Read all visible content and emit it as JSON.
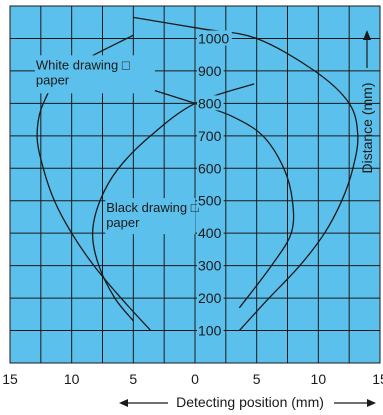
{
  "chart_data": {
    "type": "line",
    "title": "",
    "xlabel": "Detecting position (mm)",
    "ylabel": "Distance (mm)",
    "xlim": [
      -15,
      15
    ],
    "ylim": [
      0,
      1100
    ],
    "x_ticks": [
      -15,
      -10,
      -5,
      0,
      5,
      10,
      15
    ],
    "x_tick_labels": [
      "15",
      "10",
      "5",
      "0",
      "5",
      "10",
      "15"
    ],
    "y_ticks": [
      100,
      200,
      300,
      400,
      500,
      600,
      700,
      800,
      900,
      1000
    ],
    "y_tick_labels": [
      "100",
      "200",
      "300",
      "400",
      "500",
      "600",
      "700",
      "800",
      "900",
      "1000"
    ],
    "grid": true,
    "background_color": "#5cc0ec",
    "line_color": "#1a1a1a",
    "annotations": [
      {
        "text": "White drawing □\npaper",
        "near_series": "White drawing paper"
      },
      {
        "text": "Black drawing □\npaper",
        "near_series": "Black drawing paper"
      }
    ],
    "series": [
      {
        "name": "White drawing paper",
        "boundaries": [
          {
            "side": "left",
            "points": [
              [
                -3.6,
                100
              ],
              [
                -6,
                200
              ],
              [
                -8.2,
                300
              ],
              [
                -10,
                400
              ],
              [
                -11.4,
                500
              ],
              [
                -12.3,
                600
              ],
              [
                -12.8,
                700
              ],
              [
                -12.3,
                800
              ],
              [
                -10.4,
                900
              ],
              [
                -5,
                1010
              ]
            ]
          },
          {
            "side": "right",
            "points": [
              [
                3.6,
                100
              ],
              [
                6,
                200
              ],
              [
                8.5,
                300
              ],
              [
                10.5,
                400
              ],
              [
                11.9,
                500
              ],
              [
                12.8,
                600
              ],
              [
                13.2,
                700
              ],
              [
                12.5,
                800
              ],
              [
                9.7,
                900
              ],
              [
                5,
                1000
              ],
              [
                0.5,
                1030
              ],
              [
                -5,
                1065
              ]
            ]
          }
        ]
      },
      {
        "name": "Black drawing paper",
        "boundaries": [
          {
            "side": "left",
            "points": [
              [
                -5,
                130
              ],
              [
                -6.5,
                200
              ],
              [
                -7.8,
                300
              ],
              [
                -8.3,
                400
              ],
              [
                -7.7,
                500
              ],
              [
                -6.2,
                600
              ],
              [
                -3.6,
                700
              ],
              [
                0,
                800
              ],
              [
                4.8,
                860
              ]
            ]
          },
          {
            "side": "right",
            "points": [
              [
                3.6,
                170
              ],
              [
                6.2,
                300
              ],
              [
                7.8,
                400
              ],
              [
                7.9,
                500
              ],
              [
                7.2,
                600
              ],
              [
                5.5,
                700
              ],
              [
                3,
                760
              ],
              [
                0,
                800
              ],
              [
                -5,
                860
              ]
            ]
          }
        ]
      }
    ]
  }
}
